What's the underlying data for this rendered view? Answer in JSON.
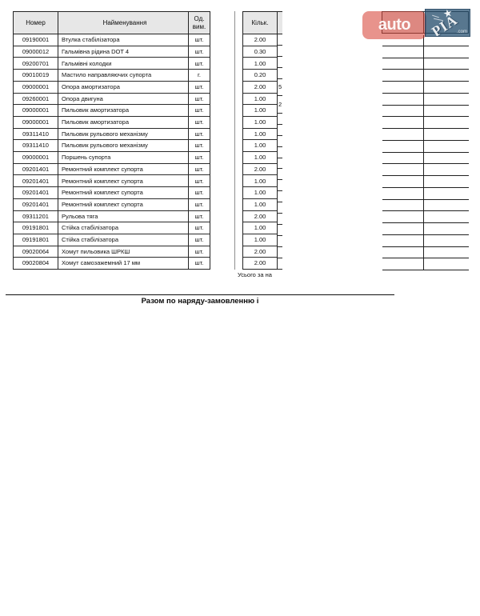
{
  "document": {
    "table": {
      "headers": {
        "number": "Номер",
        "name": "Найменування",
        "unit_line1": "Од.",
        "unit_line2": "вим.",
        "qty": "Кільк."
      },
      "rows": [
        {
          "number": "09190001",
          "name": "Втулка стабілізатора",
          "unit": "шт.",
          "qty": "2.00",
          "ghost": ""
        },
        {
          "number": "09000012",
          "name": "Гальмівна рідина DOT 4",
          "unit": "шт.",
          "qty": "0.30",
          "ghost": ""
        },
        {
          "number": "09200701",
          "name": "Гальмівні колодки",
          "unit": "шт.",
          "qty": "1.00",
          "ghost": ""
        },
        {
          "number": "09010019",
          "name": "Мастило направляючих супорта",
          "unit": "г.",
          "qty": "0.20",
          "ghost": ""
        },
        {
          "number": "09000001",
          "name": "Опора амортизатора",
          "unit": "шт.",
          "qty": "2.00",
          "ghost": "5"
        },
        {
          "number": "09260001",
          "name": "Опора двигуна",
          "unit": "шт.",
          "qty": "1.00",
          "ghost": "2"
        },
        {
          "number": "09000001",
          "name": "Пильовик амортизатора",
          "unit": "шт.",
          "qty": "1.00",
          "ghost": ""
        },
        {
          "number": "09000001",
          "name": "Пильовик амортизатора",
          "unit": "шт.",
          "qty": "1.00",
          "ghost": ""
        },
        {
          "number": "09311410",
          "name": "Пильовик рульового механізму",
          "unit": "шт.",
          "qty": "1.00",
          "ghost": ""
        },
        {
          "number": "09311410",
          "name": "Пильовик рульового механізму",
          "unit": "шт.",
          "qty": "1.00",
          "ghost": ""
        },
        {
          "number": "09000001",
          "name": "Поршень супорта",
          "unit": "шт.",
          "qty": "1.00",
          "ghost": ""
        },
        {
          "number": "09201401",
          "name": "Ремонтний комплект супорта",
          "unit": "шт.",
          "qty": "2.00",
          "ghost": ""
        },
        {
          "number": "09201401",
          "name": "Ремонтний комплект супорта",
          "unit": "шт.",
          "qty": "1.00",
          "ghost": ""
        },
        {
          "number": "09201401",
          "name": "Ремонтний комплект супорта",
          "unit": "шт.",
          "qty": "1.00",
          "ghost": ""
        },
        {
          "number": "09201401",
          "name": "Ремонтний комплект супорта",
          "unit": "шт.",
          "qty": "1.00",
          "ghost": ""
        },
        {
          "number": "09311201",
          "name": "Рульова тяга",
          "unit": "шт.",
          "qty": "2.00",
          "ghost": ""
        },
        {
          "number": "09191801",
          "name": "Стійка стабілізатора",
          "unit": "шт.",
          "qty": "1.00",
          "ghost": ""
        },
        {
          "number": "09191801",
          "name": "Стійка стабілізатора",
          "unit": "шт.",
          "qty": "1.00",
          "ghost": ""
        },
        {
          "number": "09020064",
          "name": "Хомут пильовика ШРКШ",
          "unit": "шт.",
          "qty": "2.00",
          "ghost": ""
        },
        {
          "number": "09020804",
          "name": "Хомут самозажемний 17 мм",
          "unit": "шт.",
          "qty": "2.00",
          "ghost": ""
        }
      ],
      "totals_label": "Усього за на"
    },
    "footer": {
      "total_line": "Разом по наряду-замовленню і"
    }
  },
  "watermark": {
    "auto_text": "auto",
    "ria_text": "РІА",
    "tld_text": ".com",
    "star_glyph": "★",
    "red_color": "rgba(213,58,46,0.55)",
    "blue_color": "rgba(33,76,110,0.72)"
  }
}
